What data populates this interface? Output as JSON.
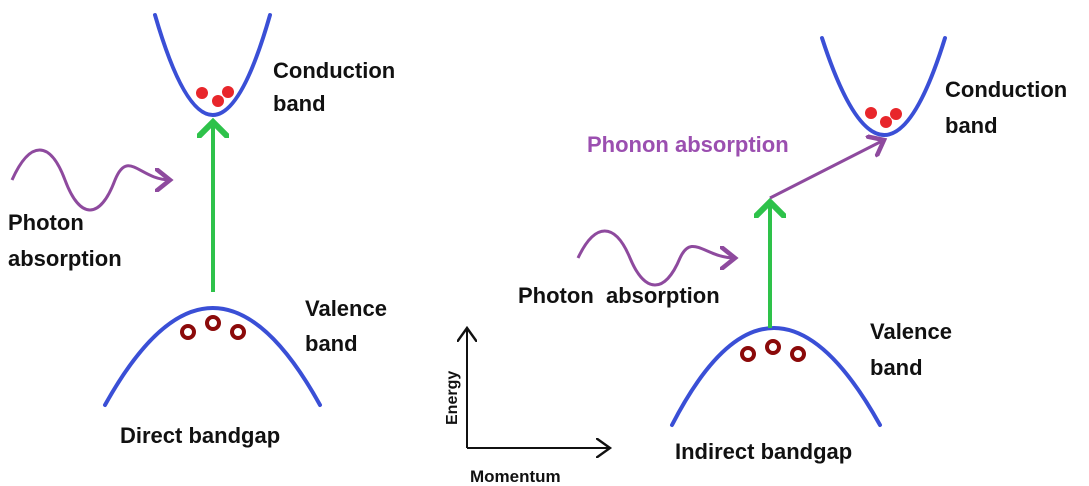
{
  "direct": {
    "conduction": [
      "Conduction",
      "band"
    ],
    "valence": [
      "Valence",
      "band"
    ],
    "photon": [
      "Photon",
      "absorption"
    ],
    "caption": "Direct bandgap"
  },
  "indirect": {
    "conduction": [
      "Conduction",
      "band"
    ],
    "valence": [
      "Valence",
      "band"
    ],
    "photon": "Photon  absorption",
    "phonon": "Phonon absorption",
    "caption": "Indirect bandgap"
  },
  "axes": {
    "y": "Energy",
    "x": "Momentum"
  }
}
